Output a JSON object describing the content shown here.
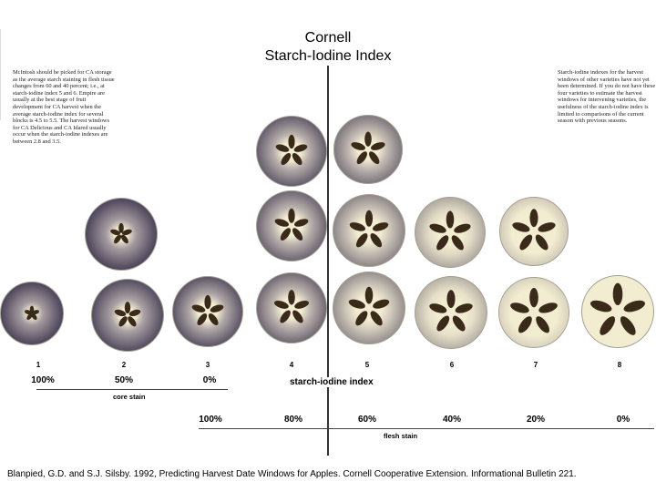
{
  "title": {
    "line1": "Cornell",
    "line2": "Starch-Iodine Index"
  },
  "note_left": "McIntosh should be picked for CA storage as the average starch staining in flesh tissue changes from 60 and 40 percent; i.e., at starch-iodine index 5 and 6. Empire are usually at the best stage of fruit development for CA harvest when the average starch-iodine index for several blocks is 4.5 to 5.5. The harvest windows for CA Delicious and CA Idared usually occur when the starch-iodine indexes are between 2.8 and 3.5.",
  "note_right": "Starch-iodine indexes for the harvest windows of other varieties have not yet been determined. If you do not have these four varieties to estimate the harvest windows for intervening varieties, the usefulness of the starch-iodine index is limited to comparisons of the current season with previous seasons.",
  "index_numbers": [
    "1",
    "2",
    "3",
    "4",
    "5",
    "6",
    "7",
    "8"
  ],
  "core_stain": {
    "values": [
      "100%",
      "50%",
      "0%"
    ],
    "label": "core stain"
  },
  "index_label": "starch-iodine index",
  "flesh_stain": {
    "values": [
      "100%",
      "80%",
      "60%",
      "40%",
      "20%",
      "0%"
    ],
    "label": "flesh stain"
  },
  "citation": "Blanpied, G.D. and S.J. Silsby. 1992, Predicting Harvest Date Windows for Apples. Cornell Cooperative Extension. Informational Bulletin 221.",
  "colors": {
    "stain_dark": "#4a4258",
    "stain_mid": "#8a8090",
    "flesh_light": "#f2ecd0",
    "core_seed": "#3a2a1a"
  }
}
